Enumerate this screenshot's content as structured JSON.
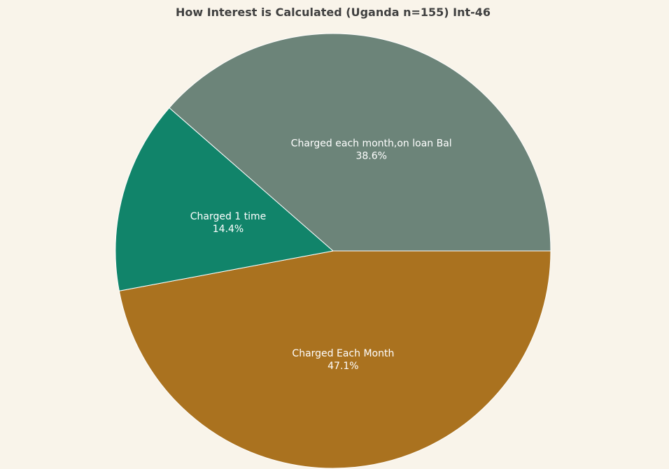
{
  "chart_data": {
    "type": "pie",
    "title": "How Interest is Calculated (Uganda n=155) Int-46",
    "start_angle_deg": 0,
    "direction": "clockwise",
    "slices": [
      {
        "label": "Charged Each Month",
        "value": 47.1,
        "display": "47.1%",
        "color": "#aa721f"
      },
      {
        "label": "Charged 1 time",
        "value": 14.4,
        "display": "14.4%",
        "color": "#11846a"
      },
      {
        "label": "Charged each month,on loan Bal",
        "value": 38.6,
        "display": "38.6%",
        "color": "#6c8479"
      }
    ]
  }
}
